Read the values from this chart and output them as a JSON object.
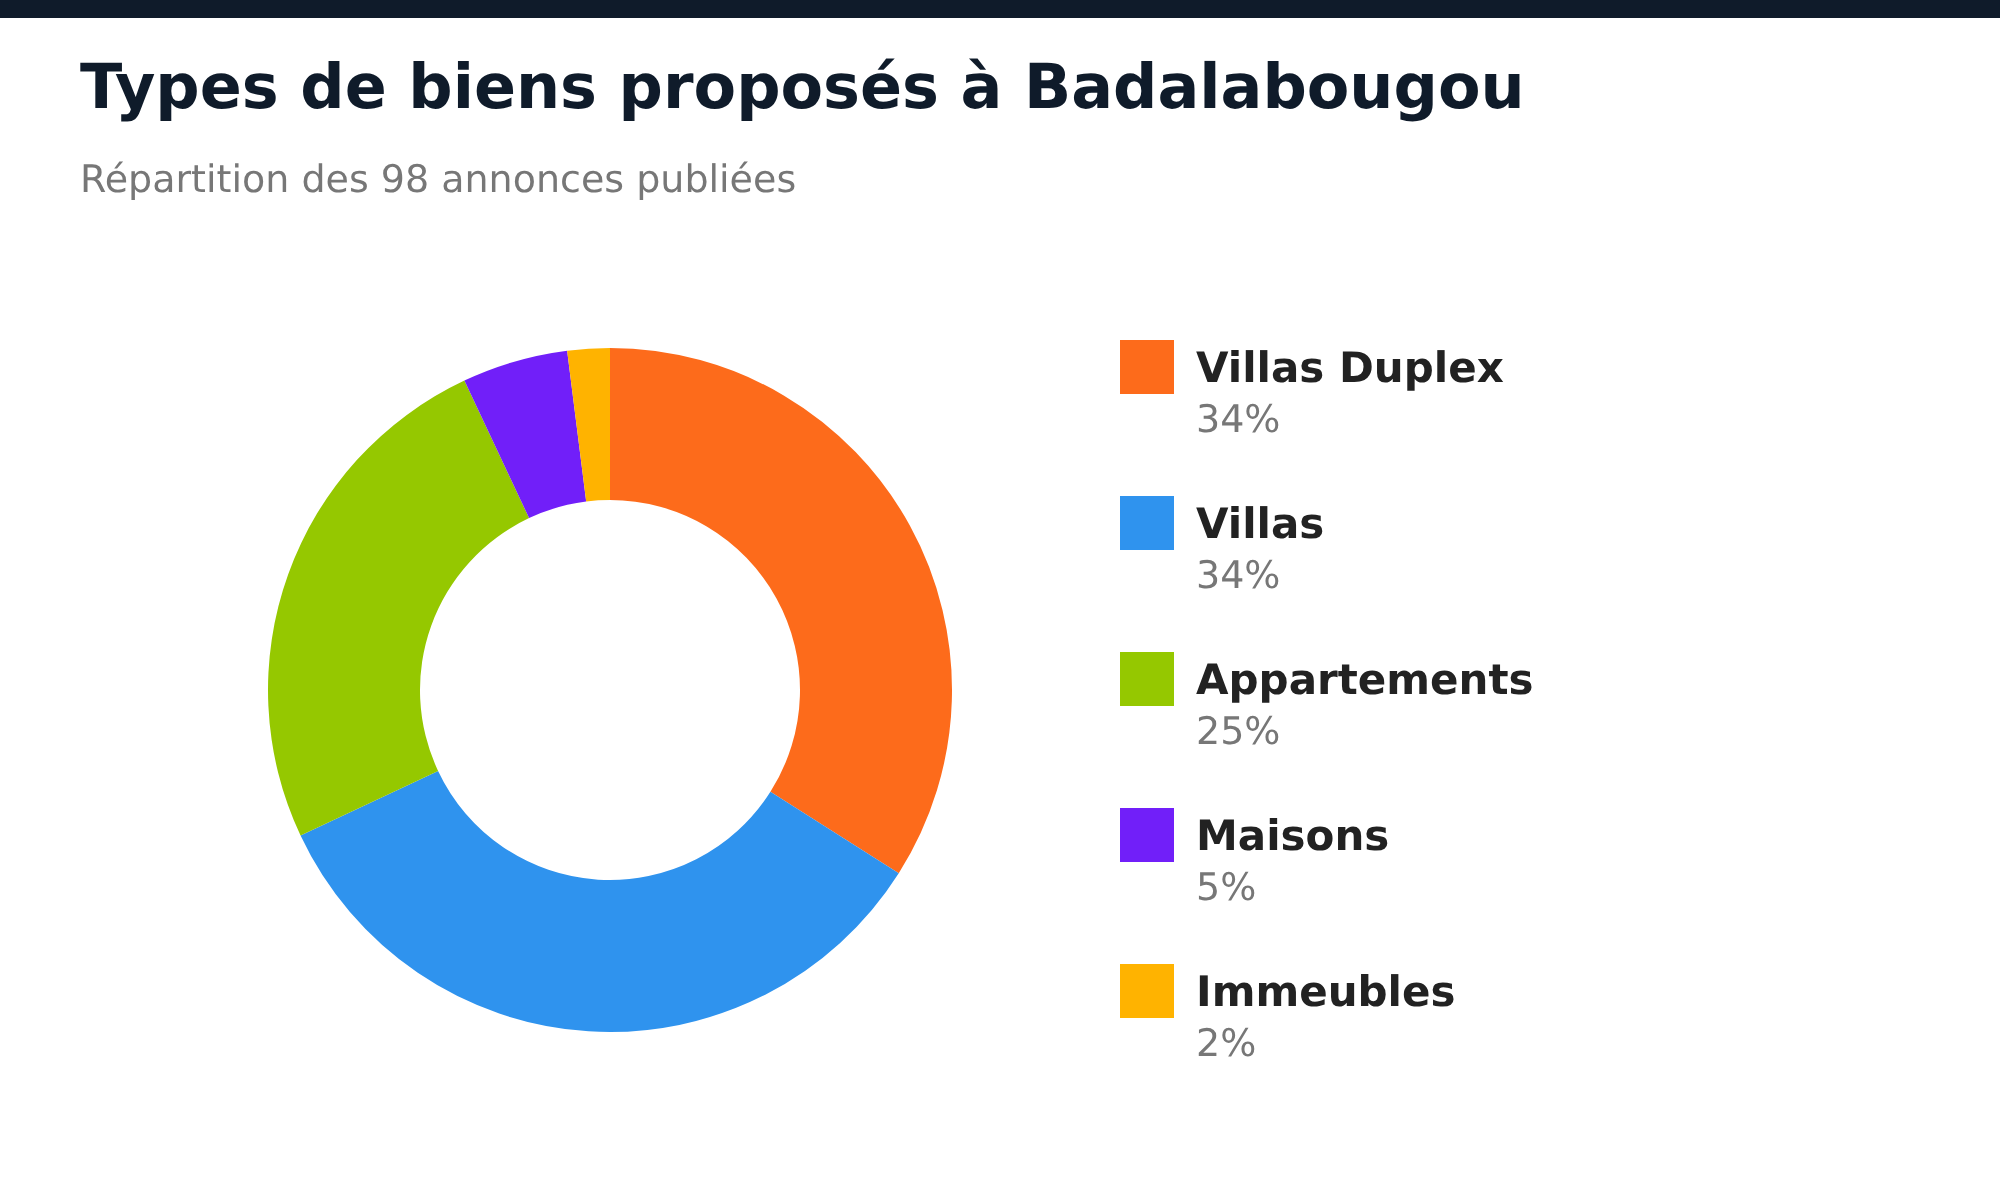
{
  "chart_data": {
    "type": "donut",
    "title": "Types de biens proposés à Badalabougou",
    "subtitle": "Répartition des 98 annonces publiées",
    "categories": [
      "Villas Duplex",
      "Villas",
      "Appartements",
      "Maisons",
      "Immeubles"
    ],
    "values": [
      34,
      34,
      25,
      5,
      2
    ],
    "value_labels": [
      "34%",
      "34%",
      "25%",
      "5%",
      "2%"
    ],
    "colors": [
      "#fd6b1b",
      "#2f93ee",
      "#95c800",
      "#711ff9",
      "#ffb300"
    ],
    "legend": "right"
  }
}
